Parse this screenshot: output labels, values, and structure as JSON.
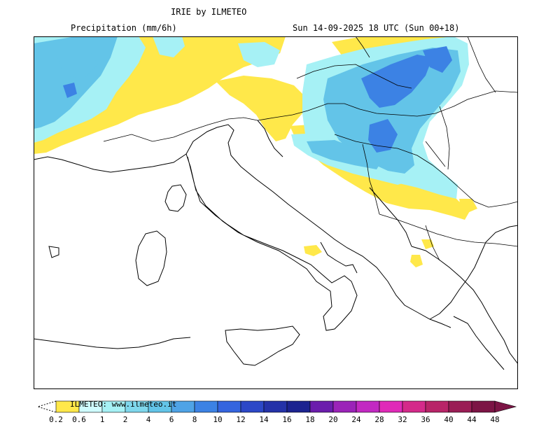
{
  "header": {
    "title": "IRIE by ILMETEO",
    "variable": "Precipitation (mm/6h)",
    "valid_time": "Sun 14-09-2025 18 UTC (Sun 00+18)"
  },
  "legend": {
    "watermark": "ILMETEO: www.ilmeteo.it",
    "labels": [
      "0.2",
      "0.6",
      "1",
      "2",
      "4",
      "6",
      "8",
      "10",
      "12",
      "14",
      "16",
      "18",
      "20",
      "24",
      "28",
      "32",
      "36",
      "40",
      "44",
      "48"
    ],
    "colors": [
      "#ffe84a",
      "#cffcff",
      "#a6f1f5",
      "#7fd7ec",
      "#63c4e8",
      "#4fa3e6",
      "#3c82e4",
      "#3465df",
      "#2c48c7",
      "#2432a8",
      "#1c2390",
      "#6b1dac",
      "#9b23b8",
      "#c229c2",
      "#e02ab8",
      "#d42a8a",
      "#b82468",
      "#9a1d55",
      "#7c1545"
    ]
  },
  "map_features": {
    "land_color": "#ffffff",
    "coast_color": "#000000"
  }
}
